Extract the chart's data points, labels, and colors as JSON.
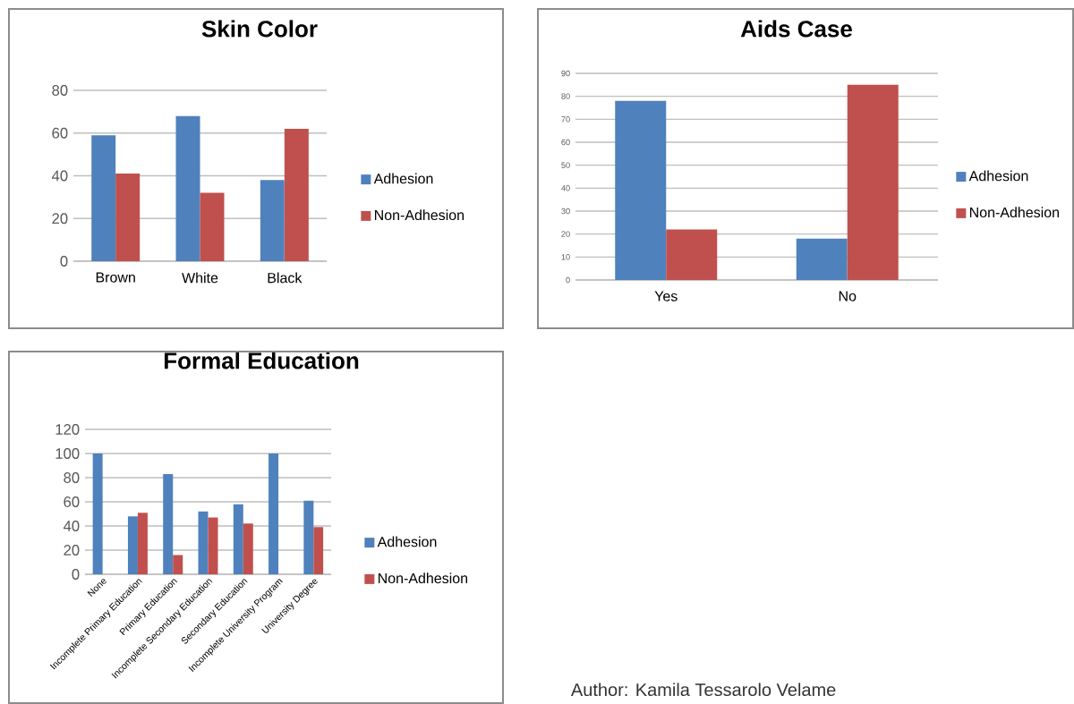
{
  "chart_data": [
    {
      "type": "bar",
      "title": "Skin Color",
      "categories": [
        "Brown",
        "White",
        "Black"
      ],
      "series": [
        {
          "name": "Adhesion",
          "color": "#4f81bd",
          "values": [
            59,
            68,
            38
          ]
        },
        {
          "name": "Non-Adhesion",
          "color": "#c0504d",
          "values": [
            41,
            32,
            62
          ]
        }
      ],
      "ylim": [
        0,
        80
      ],
      "yticks": [
        0,
        20,
        40,
        60,
        80
      ],
      "grid": "y",
      "legend": "right"
    },
    {
      "type": "bar",
      "title": "Aids Case",
      "categories": [
        "Yes",
        "No"
      ],
      "series": [
        {
          "name": "Adhesion",
          "color": "#4f81bd",
          "values": [
            78,
            18
          ]
        },
        {
          "name": "Non-Adhesion",
          "color": "#c0504d",
          "values": [
            22,
            85
          ]
        }
      ],
      "ylim": [
        0,
        90
      ],
      "yticks": [
        0,
        10,
        20,
        30,
        40,
        50,
        60,
        70,
        80,
        90
      ],
      "grid": "y",
      "legend": "right"
    },
    {
      "type": "bar",
      "title": "Formal Education",
      "categories": [
        "None",
        "Incomplete Primary Education",
        "Primary Education",
        "Incomplete Secondary Education",
        "Secondary Education",
        "Incomplete University Program",
        "University Degree"
      ],
      "series": [
        {
          "name": "Adhesion",
          "color": "#4f81bd",
          "values": [
            100,
            48,
            83,
            52,
            58,
            100,
            61
          ]
        },
        {
          "name": "Non-Adhesion",
          "color": "#c0504d",
          "values": [
            0,
            51,
            16,
            47,
            42,
            0,
            39
          ]
        }
      ],
      "ylim": [
        0,
        120
      ],
      "yticks": [
        0,
        20,
        40,
        60,
        80,
        100,
        120
      ],
      "grid": "y",
      "legend": "right",
      "annotations": [
        "Author: Kamila Tessarolo Velame"
      ]
    }
  ]
}
